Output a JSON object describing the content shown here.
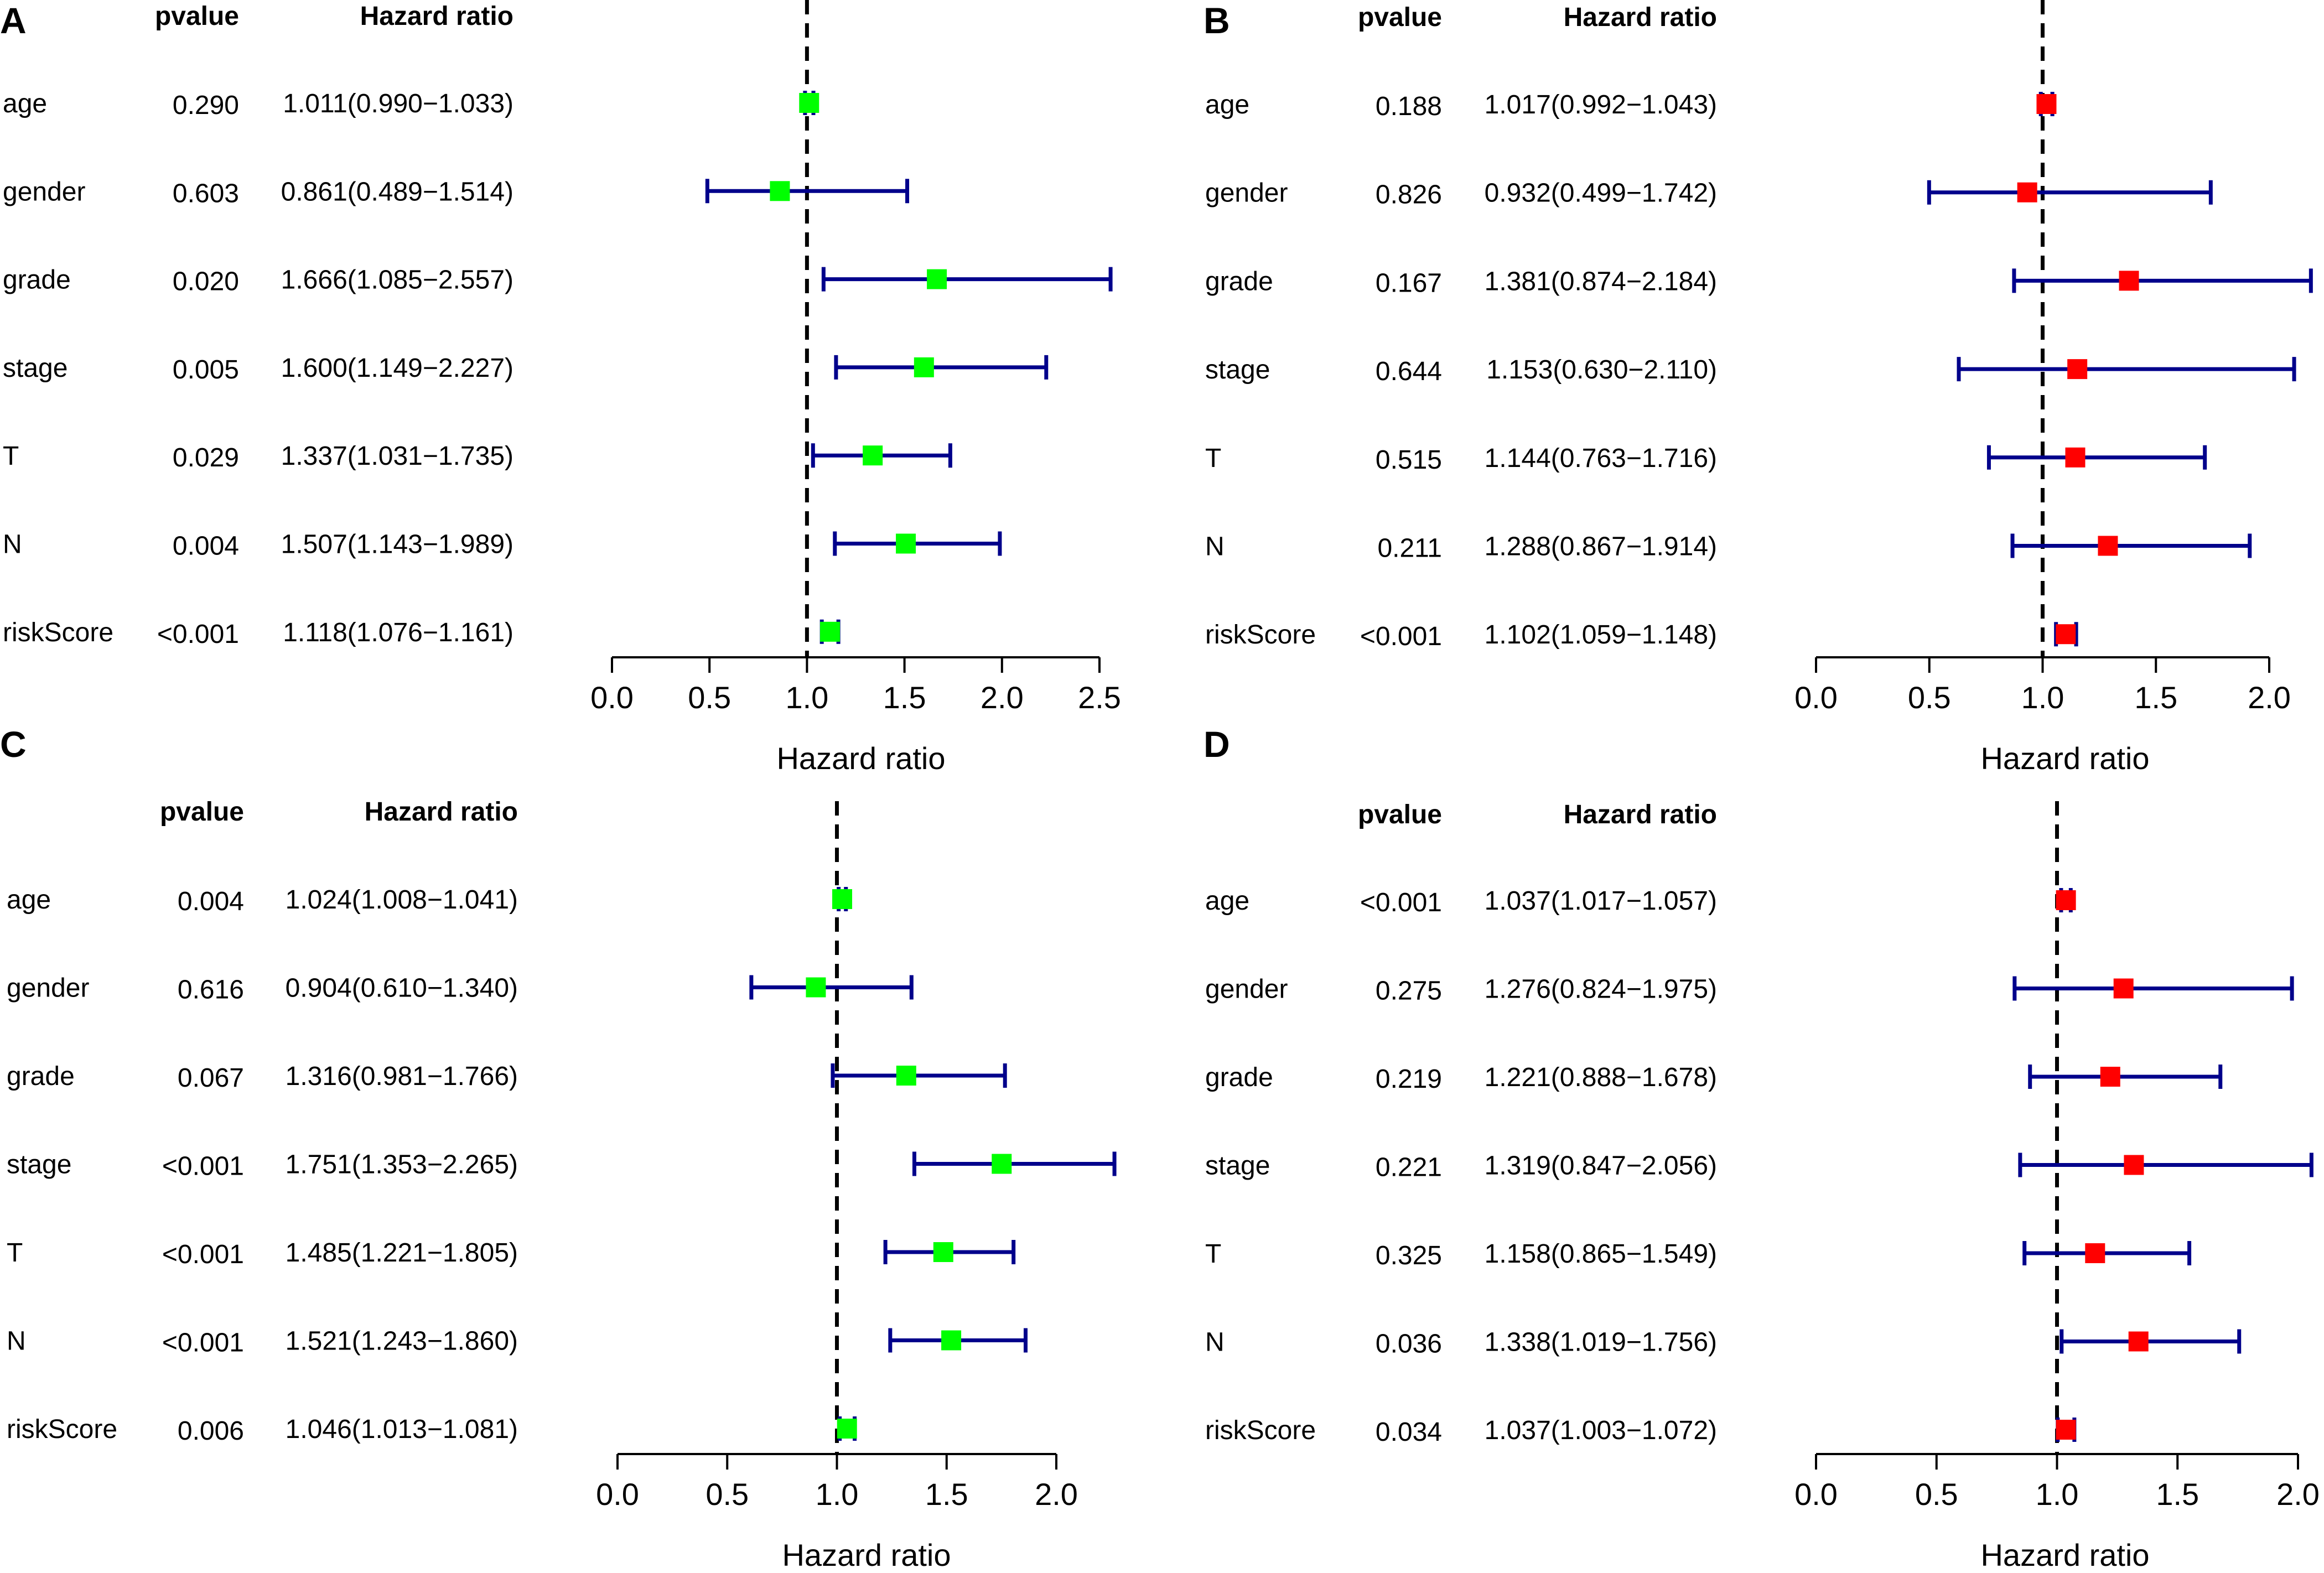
{
  "colors": {
    "ci_line": "#00008B",
    "reference_line": "#000000",
    "marker_green": "#00FF00",
    "marker_red": "#FF0000"
  },
  "chart_data": [
    {
      "type": "forest",
      "panel": "A",
      "marker_color": "#00FF00",
      "pvalue_header": "pvalue",
      "hr_header": "Hazard ratio",
      "xlabel": "Hazard ratio",
      "xlim": [
        0,
        2.5
      ],
      "xticks": [
        "0.0",
        "0.5",
        "1.0",
        "1.5",
        "2.0",
        "2.5"
      ],
      "reference": 1,
      "rows": [
        {
          "variable": "age",
          "pvalue": "0.290",
          "hr_text": "1.011(0.990−1.033)",
          "hr": 1.011,
          "lower": 0.99,
          "upper": 1.033
        },
        {
          "variable": "gender",
          "pvalue": "0.603",
          "hr_text": "0.861(0.489−1.514)",
          "hr": 0.861,
          "lower": 0.489,
          "upper": 1.514
        },
        {
          "variable": "grade",
          "pvalue": "0.020",
          "hr_text": "1.666(1.085−2.557)",
          "hr": 1.666,
          "lower": 1.085,
          "upper": 2.557
        },
        {
          "variable": "stage",
          "pvalue": "0.005",
          "hr_text": "1.600(1.149−2.227)",
          "hr": 1.6,
          "lower": 1.149,
          "upper": 2.227
        },
        {
          "variable": "T",
          "pvalue": "0.029",
          "hr_text": "1.337(1.031−1.735)",
          "hr": 1.337,
          "lower": 1.031,
          "upper": 1.735
        },
        {
          "variable": "N",
          "pvalue": "0.004",
          "hr_text": "1.507(1.143−1.989)",
          "hr": 1.507,
          "lower": 1.143,
          "upper": 1.989
        },
        {
          "variable": "riskScore",
          "pvalue": "<0.001",
          "hr_text": "1.118(1.076−1.161)",
          "hr": 1.118,
          "lower": 1.076,
          "upper": 1.161
        }
      ]
    },
    {
      "type": "forest",
      "panel": "B",
      "marker_color": "#FF0000",
      "pvalue_header": "pvalue",
      "hr_header": "Hazard ratio",
      "xlabel": "Hazard ratio",
      "xlim": [
        0,
        2.0
      ],
      "xticks": [
        "0.0",
        "0.5",
        "1.0",
        "1.5",
        "2.0"
      ],
      "reference": 1,
      "rows": [
        {
          "variable": "age",
          "pvalue": "0.188",
          "hr_text": "1.017(0.992−1.043)",
          "hr": 1.017,
          "lower": 0.992,
          "upper": 1.043
        },
        {
          "variable": "gender",
          "pvalue": "0.826",
          "hr_text": "0.932(0.499−1.742)",
          "hr": 0.932,
          "lower": 0.499,
          "upper": 1.742
        },
        {
          "variable": "grade",
          "pvalue": "0.167",
          "hr_text": "1.381(0.874−2.184)",
          "hr": 1.381,
          "lower": 0.874,
          "upper": 2.184
        },
        {
          "variable": "stage",
          "pvalue": "0.644",
          "hr_text": "1.153(0.630−2.110)",
          "hr": 1.153,
          "lower": 0.63,
          "upper": 2.11
        },
        {
          "variable": "T",
          "pvalue": "0.515",
          "hr_text": "1.144(0.763−1.716)",
          "hr": 1.144,
          "lower": 0.763,
          "upper": 1.716
        },
        {
          "variable": "N",
          "pvalue": "0.211",
          "hr_text": "1.288(0.867−1.914)",
          "hr": 1.288,
          "lower": 0.867,
          "upper": 1.914
        },
        {
          "variable": "riskScore",
          "pvalue": "<0.001",
          "hr_text": "1.102(1.059−1.148)",
          "hr": 1.102,
          "lower": 1.059,
          "upper": 1.148
        }
      ]
    },
    {
      "type": "forest",
      "panel": "C",
      "marker_color": "#00FF00",
      "pvalue_header": "pvalue",
      "hr_header": "Hazard ratio",
      "xlabel": "Hazard ratio",
      "xlim": [
        0,
        2.0
      ],
      "xticks": [
        "0.0",
        "0.5",
        "1.0",
        "1.5",
        "2.0"
      ],
      "reference": 1,
      "rows": [
        {
          "variable": "age",
          "pvalue": "0.004",
          "hr_text": "1.024(1.008−1.041)",
          "hr": 1.024,
          "lower": 1.008,
          "upper": 1.041
        },
        {
          "variable": "gender",
          "pvalue": "0.616",
          "hr_text": "0.904(0.610−1.340)",
          "hr": 0.904,
          "lower": 0.61,
          "upper": 1.34
        },
        {
          "variable": "grade",
          "pvalue": "0.067",
          "hr_text": "1.316(0.981−1.766)",
          "hr": 1.316,
          "lower": 0.981,
          "upper": 1.766
        },
        {
          "variable": "stage",
          "pvalue": "<0.001",
          "hr_text": "1.751(1.353−2.265)",
          "hr": 1.751,
          "lower": 1.353,
          "upper": 2.265
        },
        {
          "variable": "T",
          "pvalue": "<0.001",
          "hr_text": "1.485(1.221−1.805)",
          "hr": 1.485,
          "lower": 1.221,
          "upper": 1.805
        },
        {
          "variable": "N",
          "pvalue": "<0.001",
          "hr_text": "1.521(1.243−1.860)",
          "hr": 1.521,
          "lower": 1.243,
          "upper": 1.86
        },
        {
          "variable": "riskScore",
          "pvalue": "0.006",
          "hr_text": "1.046(1.013−1.081)",
          "hr": 1.046,
          "lower": 1.013,
          "upper": 1.081
        }
      ]
    },
    {
      "type": "forest",
      "panel": "D",
      "marker_color": "#FF0000",
      "pvalue_header": "pvalue",
      "hr_header": "Hazard ratio",
      "xlabel": "Hazard ratio",
      "xlim": [
        0,
        2.0
      ],
      "xticks": [
        "0.0",
        "0.5",
        "1.0",
        "1.5",
        "2.0"
      ],
      "reference": 1,
      "rows": [
        {
          "variable": "age",
          "pvalue": "<0.001",
          "hr_text": "1.037(1.017−1.057)",
          "hr": 1.037,
          "lower": 1.017,
          "upper": 1.057
        },
        {
          "variable": "gender",
          "pvalue": "0.275",
          "hr_text": "1.276(0.824−1.975)",
          "hr": 1.276,
          "lower": 0.824,
          "upper": 1.975
        },
        {
          "variable": "grade",
          "pvalue": "0.219",
          "hr_text": "1.221(0.888−1.678)",
          "hr": 1.221,
          "lower": 0.888,
          "upper": 1.678
        },
        {
          "variable": "stage",
          "pvalue": "0.221",
          "hr_text": "1.319(0.847−2.056)",
          "hr": 1.319,
          "lower": 0.847,
          "upper": 2.056
        },
        {
          "variable": "T",
          "pvalue": "0.325",
          "hr_text": "1.158(0.865−1.549)",
          "hr": 1.158,
          "lower": 0.865,
          "upper": 1.549
        },
        {
          "variable": "N",
          "pvalue": "0.036",
          "hr_text": "1.338(1.019−1.756)",
          "hr": 1.338,
          "lower": 1.019,
          "upper": 1.756
        },
        {
          "variable": "riskScore",
          "pvalue": "0.034",
          "hr_text": "1.037(1.003−1.072)",
          "hr": 1.037,
          "lower": 1.003,
          "upper": 1.072
        }
      ]
    }
  ]
}
